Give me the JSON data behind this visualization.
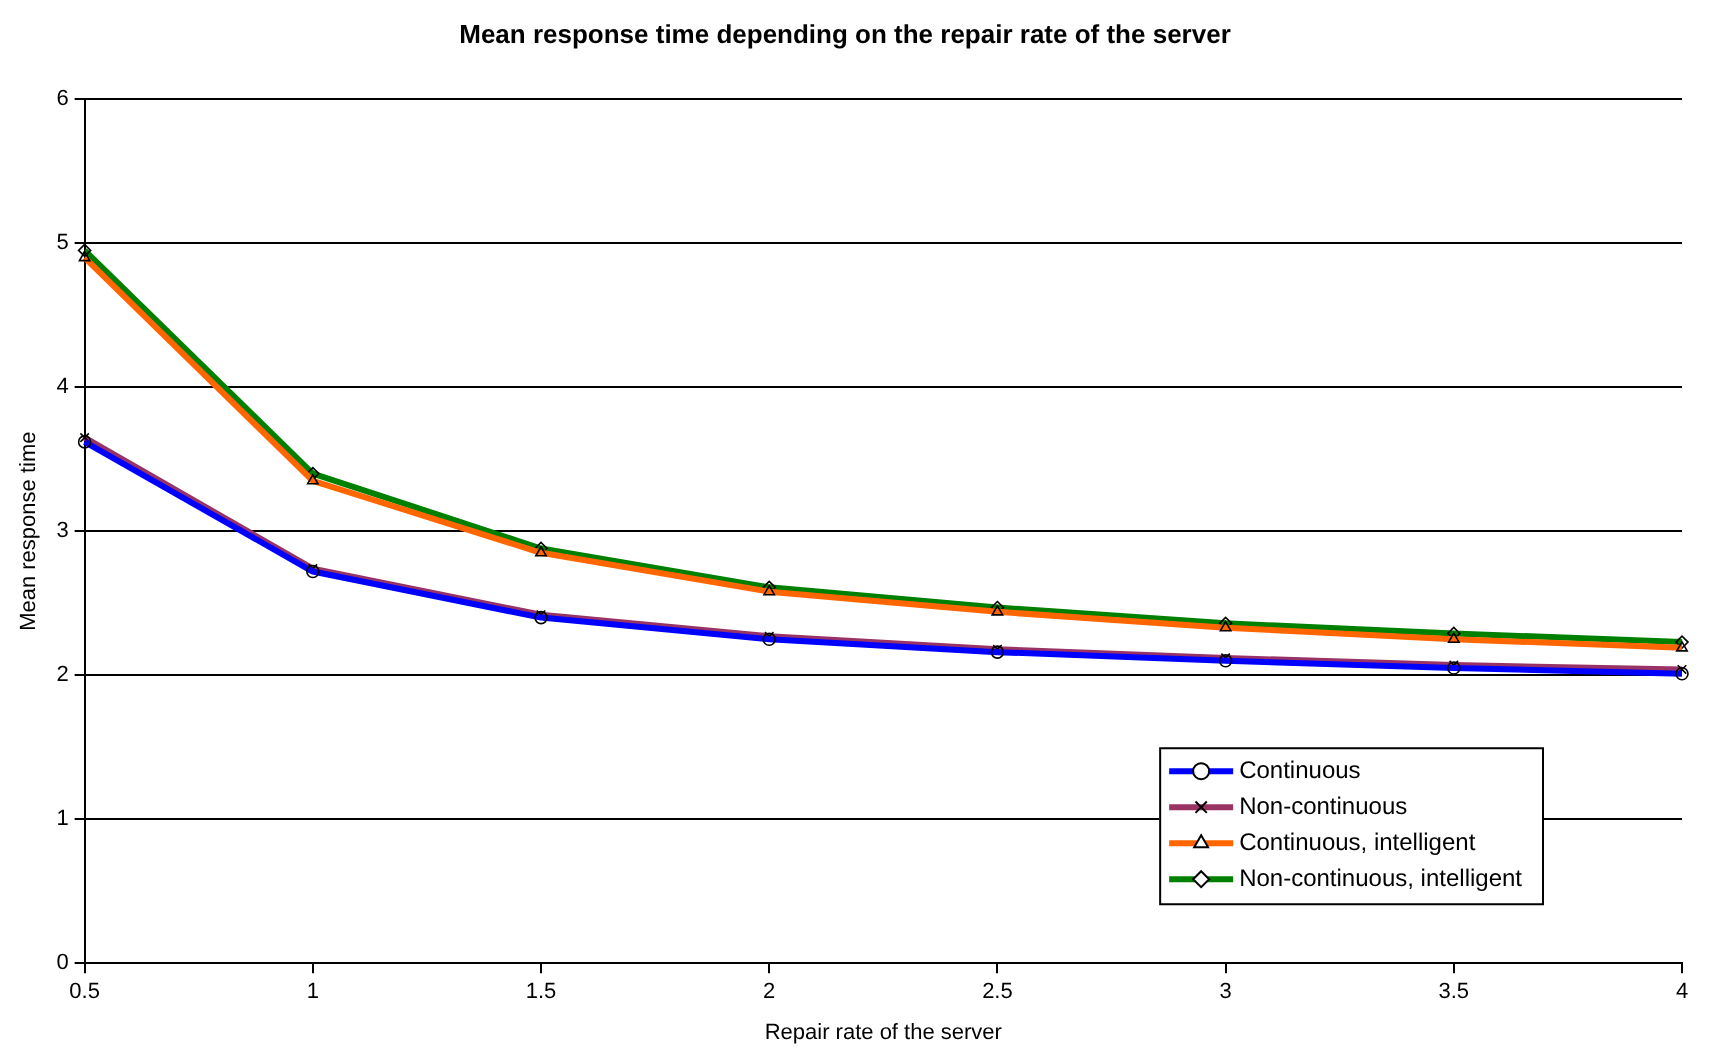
{
  "chart_data": {
    "type": "line",
    "title": "Mean response time depending on the repair rate of the server",
    "xlabel": "Repair rate of the server",
    "ylabel": "Mean response time",
    "x": [
      0.5,
      1,
      1.5,
      2,
      2.5,
      3,
      3.5,
      4
    ],
    "series": [
      {
        "name": "Continuous",
        "color": "#0000ff",
        "marker": "circle",
        "values": [
          3.62,
          2.72,
          2.4,
          2.25,
          2.16,
          2.1,
          2.05,
          2.01
        ]
      },
      {
        "name": "Non-continuous",
        "color": "#993366",
        "marker": "cross",
        "values": [
          3.65,
          2.74,
          2.42,
          2.27,
          2.18,
          2.12,
          2.07,
          2.04
        ]
      },
      {
        "name": "Continuous, intelligent",
        "color": "#ff6600",
        "marker": "triangle",
        "values": [
          4.9,
          3.35,
          2.85,
          2.58,
          2.44,
          2.33,
          2.25,
          2.19
        ]
      },
      {
        "name": "Non-continuous, intelligent",
        "color": "#008000",
        "marker": "diamond",
        "values": [
          4.95,
          3.4,
          2.88,
          2.61,
          2.47,
          2.36,
          2.29,
          2.23
        ]
      }
    ],
    "xlim": [
      0.5,
      4
    ],
    "xticks": [
      0.5,
      1,
      1.5,
      2,
      2.5,
      3,
      3.5,
      4
    ],
    "ylim": [
      0,
      6
    ],
    "yticks": [
      0,
      1,
      2,
      3,
      4,
      5,
      6
    ],
    "grid": "y",
    "legend": "bottom right"
  }
}
